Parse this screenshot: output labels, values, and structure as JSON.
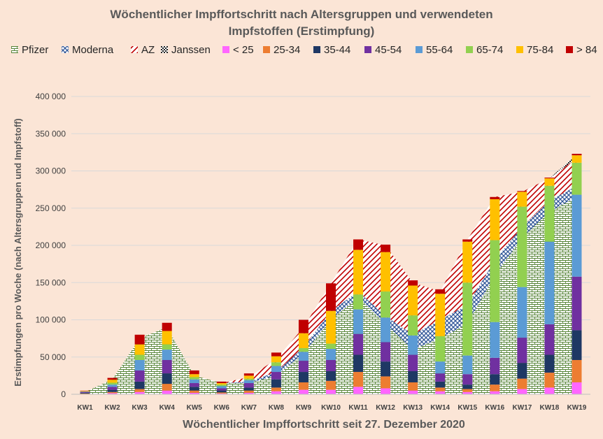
{
  "chart_data": {
    "type": "bar",
    "title": "Wöchentlicher Impffortschritt nach Altersgruppen und verwendeten Impfstoffen (Erstimpfung)",
    "title_lines": [
      "Wöchentlicher Impffortschritt nach Altersgruppen und verwendeten",
      "Impfstoffen (Erstimpfung)"
    ],
    "xlabel": "Wöchentlicher Impffortschritt seit 27. Dezember 2020",
    "ylabel": "Erstimpfungen pro Woche (nach Altersgruppen und Impfstoff)",
    "ylim": [
      0,
      400000
    ],
    "yticks": [
      0,
      50000,
      100000,
      150000,
      200000,
      250000,
      300000,
      350000,
      400000
    ],
    "ytick_labels": [
      "0",
      "50 000",
      "100 000",
      "150 000",
      "200 000",
      "250 000",
      "300 000",
      "350 000",
      "400 000"
    ],
    "grid": true,
    "legend_position": "top",
    "categories": [
      "KW1",
      "KW2",
      "KW3",
      "KW4",
      "KW5",
      "KW6",
      "KW7",
      "KW8",
      "KW9",
      "KW10",
      "KW11",
      "KW12",
      "KW13",
      "KW14",
      "KW15",
      "KW16",
      "KW17",
      "KW18",
      "KW19"
    ],
    "area_series": [
      {
        "name": "Pfizer",
        "color": "#70ad47",
        "pattern": "brick",
        "values": [
          3000,
          20000,
          75000,
          90000,
          25000,
          15000,
          15000,
          25000,
          55000,
          100000,
          130000,
          95000,
          60000,
          75000,
          95000,
          160000,
          210000,
          245000,
          265000
        ]
      },
      {
        "name": "Moderna",
        "color": "#4472c4",
        "pattern": "diamond",
        "values": [
          0,
          0,
          0,
          0,
          0,
          0,
          2000,
          5000,
          8000,
          12000,
          8000,
          10000,
          20000,
          25000,
          25000,
          20000,
          15000,
          15000,
          15000
        ]
      },
      {
        "name": "AZ",
        "color": "#c00000",
        "pattern": "diagonal",
        "values": [
          0,
          0,
          0,
          0,
          0,
          0,
          6000,
          17000,
          27000,
          37000,
          70000,
          95000,
          70000,
          38000,
          88000,
          85000,
          47000,
          30000,
          37000
        ]
      },
      {
        "name": "Janssen",
        "color": "#404040",
        "pattern": "checker",
        "values": [
          0,
          0,
          0,
          0,
          0,
          0,
          0,
          0,
          0,
          0,
          0,
          0,
          0,
          0,
          0,
          0,
          0,
          0,
          5000
        ]
      }
    ],
    "bar_series": [
      {
        "name": "< 25",
        "color": "#ff66ff",
        "values": [
          500,
          1500,
          3000,
          5000,
          2000,
          1000,
          2000,
          4000,
          6000,
          6000,
          10000,
          8000,
          5000,
          4000,
          3000,
          4000,
          7000,
          9000,
          16000
        ]
      },
      {
        "name": "25-34",
        "color": "#ed7d31",
        "values": [
          500,
          1500,
          4000,
          9000,
          3000,
          1500,
          3000,
          5000,
          10000,
          12000,
          20000,
          16000,
          11000,
          5000,
          4000,
          9000,
          14000,
          20000,
          30000
        ]
      },
      {
        "name": "35-44",
        "color": "#1f3864",
        "values": [
          1000,
          3000,
          10000,
          14000,
          5000,
          2500,
          4000,
          11000,
          14000,
          13000,
          23000,
          20000,
          15000,
          8000,
          6000,
          14000,
          21000,
          24000,
          40000
        ]
      },
      {
        "name": "45-54",
        "color": "#7030a0",
        "values": [
          1000,
          4000,
          15000,
          18000,
          5000,
          3000,
          6000,
          10000,
          15000,
          15000,
          28000,
          26000,
          22000,
          11000,
          14000,
          22000,
          34000,
          41000,
          72000
        ]
      },
      {
        "name": "55-64",
        "color": "#5b9bd5",
        "values": [
          500,
          3000,
          14000,
          14000,
          5000,
          3000,
          4000,
          8000,
          12000,
          15000,
          33000,
          33000,
          26000,
          16000,
          25000,
          48000,
          68000,
          111000,
          110000
        ]
      },
      {
        "name": "65-74",
        "color": "#92d050",
        "values": [
          300,
          2500,
          7000,
          7000,
          3000,
          2000,
          2000,
          5000,
          5000,
          7000,
          20000,
          35000,
          27000,
          34000,
          98000,
          110000,
          108000,
          75000,
          43000
        ]
      },
      {
        "name": "75-84",
        "color": "#ffc000",
        "values": [
          500,
          4000,
          14000,
          18000,
          4000,
          2000,
          4000,
          8000,
          20000,
          44000,
          60000,
          53000,
          40000,
          57000,
          55000,
          55000,
          20000,
          10000,
          10000
        ]
      },
      {
        "name": "> 84",
        "color": "#c00000",
        "values": [
          500,
          2500,
          13000,
          11000,
          5000,
          2000,
          3000,
          5000,
          18000,
          37000,
          14000,
          10000,
          7000,
          6000,
          3000,
          3000,
          1000,
          1000,
          2000
        ]
      }
    ],
    "legend": [
      "Pfizer",
      "Moderna",
      "AZ",
      "Janssen",
      "< 25",
      "25-34",
      "35-44",
      "45-54",
      "55-64",
      "65-74",
      "75-84",
      "> 84"
    ]
  }
}
